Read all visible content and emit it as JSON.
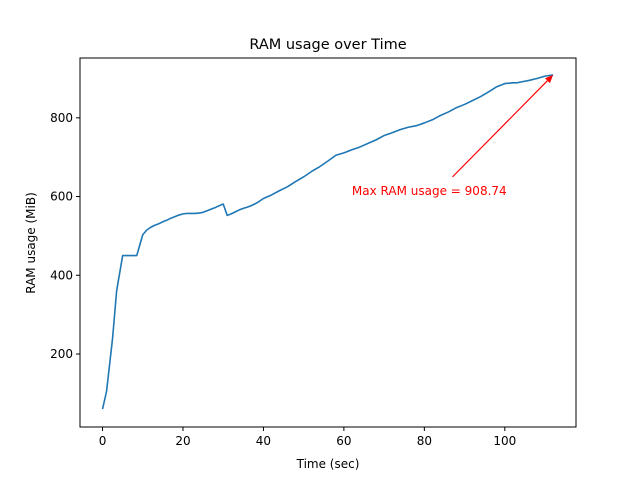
{
  "chart_data": {
    "type": "line",
    "title": "RAM usage over Time",
    "xlabel": "Time (sec)",
    "ylabel": "RAM usage (MiB)",
    "xlim": [
      -5.6,
      117.7
    ],
    "ylim": [
      14.5,
      952.0
    ],
    "xticks": [
      0,
      20,
      40,
      60,
      80,
      100
    ],
    "yticks": [
      200,
      400,
      600,
      800
    ],
    "grid": false,
    "series": [
      {
        "color": "#1f77b4",
        "x": [
          0,
          1,
          2.5,
          3.5,
          5,
          6,
          7,
          8,
          8.5,
          10,
          11,
          12,
          13,
          14,
          15,
          16,
          17,
          18,
          19,
          20,
          21,
          22,
          23,
          24,
          25,
          26,
          27,
          28,
          30,
          31,
          32,
          33,
          34,
          35,
          36,
          37,
          38,
          39,
          40,
          42,
          44,
          46,
          48,
          50,
          52,
          54,
          56,
          58,
          60,
          62,
          64,
          66,
          68,
          70,
          72,
          74,
          76,
          78,
          80,
          82,
          84,
          86,
          88,
          90,
          92,
          94,
          96,
          98,
          100,
          102,
          103,
          104,
          106,
          108,
          110,
          112
        ],
        "values": [
          60,
          105,
          240,
          360,
          450,
          450,
          450,
          450,
          450,
          503,
          515,
          522,
          527,
          531,
          536,
          540,
          545,
          549,
          553,
          556,
          557,
          557,
          557,
          558,
          560,
          564,
          568,
          572,
          581,
          552,
          556,
          561,
          566,
          570,
          573,
          577,
          582,
          588,
          595,
          604,
          615,
          625,
          638,
          650,
          664,
          676,
          690,
          705,
          711,
          719,
          726,
          735,
          744,
          755,
          762,
          770,
          776,
          780,
          787,
          795,
          806,
          815,
          826,
          834,
          844,
          854,
          866,
          879,
          887,
          889,
          889,
          891,
          895,
          900,
          906,
          909
        ]
      }
    ],
    "annotation": {
      "text": "Max RAM usage = 908.74",
      "color": "#ff0000",
      "point": [
        112,
        908.74
      ],
      "text_xy": [
        62,
        604
      ]
    }
  }
}
